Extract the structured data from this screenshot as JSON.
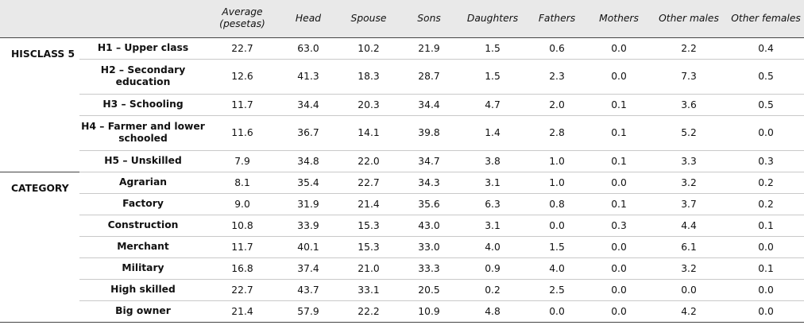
{
  "columns": [
    "",
    "",
    "Average (pesetas)",
    "Head",
    "Spouse",
    "Sons",
    "Daughters",
    "Fathers",
    "Mothers",
    "Other males",
    "Other females"
  ],
  "groups": [
    {
      "label": "HISCLASS 5",
      "rows": [
        {
          "label": "H1 – Upper class",
          "values": [
            "22.7",
            "63.0",
            "10.2",
            "21.9",
            "1.5",
            "0.6",
            "0.0",
            "2.2",
            "0.4"
          ]
        },
        {
          "label": "H2 – Secondary education",
          "values": [
            "12.6",
            "41.3",
            "18.3",
            "28.7",
            "1.5",
            "2.3",
            "0.0",
            "7.3",
            "0.5"
          ]
        },
        {
          "label": "H3 – Schooling",
          "values": [
            "11.7",
            "34.4",
            "20.3",
            "34.4",
            "4.7",
            "2.0",
            "0.1",
            "3.6",
            "0.5"
          ]
        },
        {
          "label": "H4 – Farmer and lower schooled",
          "values": [
            "11.6",
            "36.7",
            "14.1",
            "39.8",
            "1.4",
            "2.8",
            "0.1",
            "5.2",
            "0.0"
          ]
        },
        {
          "label": "H5 – Unskilled",
          "values": [
            "7.9",
            "34.8",
            "22.0",
            "34.7",
            "3.8",
            "1.0",
            "0.1",
            "3.3",
            "0.3"
          ]
        }
      ]
    },
    {
      "label": "CATEGORY",
      "rows": [
        {
          "label": "Agrarian",
          "values": [
            "8.1",
            "35.4",
            "22.7",
            "34.3",
            "3.1",
            "1.0",
            "0.0",
            "3.2",
            "0.2"
          ]
        },
        {
          "label": "Factory",
          "values": [
            "9.0",
            "31.9",
            "21.4",
            "35.6",
            "6.3",
            "0.8",
            "0.1",
            "3.7",
            "0.2"
          ]
        },
        {
          "label": "Construction",
          "values": [
            "10.8",
            "33.9",
            "15.3",
            "43.0",
            "3.1",
            "0.0",
            "0.3",
            "4.4",
            "0.1"
          ]
        },
        {
          "label": "Merchant",
          "values": [
            "11.7",
            "40.1",
            "15.3",
            "33.0",
            "4.0",
            "1.5",
            "0.0",
            "6.1",
            "0.0"
          ]
        },
        {
          "label": "Military",
          "values": [
            "16.8",
            "37.4",
            "21.0",
            "33.3",
            "0.9",
            "4.0",
            "0.0",
            "3.2",
            "0.1"
          ]
        },
        {
          "label": "High skilled",
          "values": [
            "22.7",
            "43.7",
            "33.1",
            "20.5",
            "0.2",
            "2.5",
            "0.0",
            "0.0",
            "0.0"
          ]
        },
        {
          "label": "Big owner",
          "values": [
            "21.4",
            "57.9",
            "22.2",
            "10.9",
            "4.8",
            "0.0",
            "0.0",
            "4.2",
            "0.0"
          ]
        }
      ]
    }
  ]
}
